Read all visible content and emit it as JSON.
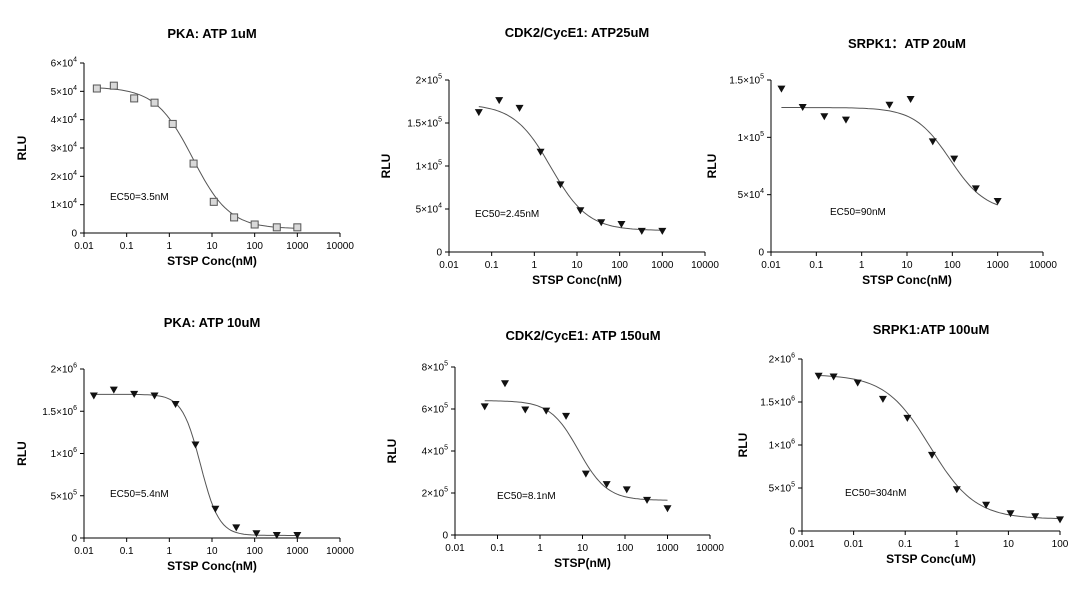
{
  "chart_data": [
    {
      "type": "scatter",
      "title": "PKA: ATP 1uM",
      "xlabel": "STSP Conc(nM)",
      "ylabel": "RLU",
      "xscale": "log",
      "xlim": [
        0.01,
        10000
      ],
      "ylim": [
        0,
        60000
      ],
      "x_ticks": [
        "0.01",
        "0.1",
        "1",
        "10",
        "100",
        "1000",
        "10000"
      ],
      "y_ticks": [
        {
          "value": 0,
          "mant": "0",
          "exp": ""
        },
        {
          "value": 10000,
          "mant": "1×10",
          "exp": "4"
        },
        {
          "value": 20000,
          "mant": "2×10",
          "exp": "4"
        },
        {
          "value": 30000,
          "mant": "3×10",
          "exp": "4"
        },
        {
          "value": 40000,
          "mant": "4×10",
          "exp": "4"
        },
        {
          "value": 50000,
          "mant": "5×10",
          "exp": "4"
        },
        {
          "value": 60000,
          "mant": "6×10",
          "exp": "4"
        }
      ],
      "marker": "square",
      "annotation": "EC50=3.5nM",
      "fit": {
        "top": 51500,
        "bottom": 1500,
        "ec50": 3.5,
        "hill": 1.0
      },
      "points": [
        {
          "x": 0.02,
          "y": 51000
        },
        {
          "x": 0.05,
          "y": 52000
        },
        {
          "x": 0.15,
          "y": 47500
        },
        {
          "x": 0.45,
          "y": 46000
        },
        {
          "x": 1.2,
          "y": 38500
        },
        {
          "x": 3.7,
          "y": 24500
        },
        {
          "x": 11,
          "y": 11000
        },
        {
          "x": 33,
          "y": 5500
        },
        {
          "x": 100,
          "y": 3000
        },
        {
          "x": 330,
          "y": 2000
        },
        {
          "x": 1000,
          "y": 2000
        }
      ]
    },
    {
      "type": "scatter",
      "title": "CDK2/CycE1: ATP25uM",
      "xlabel": "STSP Conc(nM)",
      "ylabel": "RLU",
      "xscale": "log",
      "xlim": [
        0.01,
        10000
      ],
      "ylim": [
        0,
        200000
      ],
      "x_ticks": [
        "0.01",
        "0.1",
        "1",
        "10",
        "100",
        "1000",
        "10000"
      ],
      "y_ticks": [
        {
          "value": 0,
          "mant": "0",
          "exp": ""
        },
        {
          "value": 50000,
          "mant": "5×10",
          "exp": "4"
        },
        {
          "value": 100000,
          "mant": "1×10",
          "exp": "5"
        },
        {
          "value": 150000,
          "mant": "1.5×10",
          "exp": "5"
        },
        {
          "value": 200000,
          "mant": "2×10",
          "exp": "5"
        }
      ],
      "marker": "triangle-down",
      "annotation": "EC50=2.45nM",
      "fit": {
        "top": 172000,
        "bottom": 25000,
        "ec50": 2.45,
        "hill": 1.0
      },
      "points": [
        {
          "x": 0.05,
          "y": 162000
        },
        {
          "x": 0.15,
          "y": 176000
        },
        {
          "x": 0.45,
          "y": 167000
        },
        {
          "x": 1.4,
          "y": 116000
        },
        {
          "x": 4.1,
          "y": 78000
        },
        {
          "x": 12,
          "y": 48000
        },
        {
          "x": 37,
          "y": 34000
        },
        {
          "x": 110,
          "y": 32000
        },
        {
          "x": 330,
          "y": 24000
        },
        {
          "x": 1000,
          "y": 24000
        }
      ]
    },
    {
      "type": "scatter",
      "title": "SRPK1：ATP 20uM",
      "xlabel": "STSP Conc(nM)",
      "ylabel": "RLU",
      "xscale": "log",
      "xlim": [
        0.01,
        10000
      ],
      "ylim": [
        0,
        150000
      ],
      "x_ticks": [
        "0.01",
        "0.1",
        "1",
        "10",
        "100",
        "1000",
        "10000"
      ],
      "y_ticks": [
        {
          "value": 0,
          "mant": "0",
          "exp": ""
        },
        {
          "value": 50000,
          "mant": "5×10",
          "exp": "4"
        },
        {
          "value": 100000,
          "mant": "1×10",
          "exp": "5"
        },
        {
          "value": 150000,
          "mant": "1.5×10",
          "exp": "5"
        }
      ],
      "marker": "triangle-down",
      "annotation": "EC50=90nM",
      "fit": {
        "top": 126000,
        "bottom": 35000,
        "ec50": 90,
        "hill": 1.1
      },
      "points": [
        {
          "x": 0.017,
          "y": 142000
        },
        {
          "x": 0.05,
          "y": 126000
        },
        {
          "x": 0.15,
          "y": 118000
        },
        {
          "x": 0.45,
          "y": 115000
        },
        {
          "x": 4.1,
          "y": 128000
        },
        {
          "x": 12,
          "y": 133000
        },
        {
          "x": 37,
          "y": 96000
        },
        {
          "x": 110,
          "y": 81000
        },
        {
          "x": 330,
          "y": 55000
        },
        {
          "x": 1000,
          "y": 44000
        }
      ]
    },
    {
      "type": "scatter",
      "title": "PKA: ATP 10uM",
      "xlabel": "STSP Conc(nM)",
      "ylabel": "RLU",
      "xscale": "log",
      "xlim": [
        0.01,
        10000
      ],
      "ylim": [
        0,
        2000000
      ],
      "x_ticks": [
        "0.01",
        "0.1",
        "1",
        "10",
        "100",
        "1000",
        "10000"
      ],
      "y_ticks": [
        {
          "value": 0,
          "mant": "0",
          "exp": ""
        },
        {
          "value": 500000,
          "mant": "5×10",
          "exp": "5"
        },
        {
          "value": 1000000,
          "mant": "1×10",
          "exp": "6"
        },
        {
          "value": 1500000,
          "mant": "1.5×10",
          "exp": "6"
        },
        {
          "value": 2000000,
          "mant": "2×10",
          "exp": "6"
        }
      ],
      "marker": "triangle-down",
      "annotation": "EC50=5.4nM",
      "fit": {
        "top": 1700000,
        "bottom": 30000,
        "ec50": 5.4,
        "hill": 2.0
      },
      "points": [
        {
          "x": 0.017,
          "y": 1680000
        },
        {
          "x": 0.05,
          "y": 1750000
        },
        {
          "x": 0.15,
          "y": 1700000
        },
        {
          "x": 0.45,
          "y": 1680000
        },
        {
          "x": 1.4,
          "y": 1580000
        },
        {
          "x": 4.1,
          "y": 1100000
        },
        {
          "x": 12,
          "y": 340000
        },
        {
          "x": 37,
          "y": 120000
        },
        {
          "x": 110,
          "y": 50000
        },
        {
          "x": 330,
          "y": 30000
        },
        {
          "x": 1000,
          "y": 30000
        }
      ]
    },
    {
      "type": "scatter",
      "title": "CDK2/CycE1: ATP 150uM",
      "xlabel": "STSP(nM)",
      "ylabel": "RLU",
      "xscale": "log",
      "xlim": [
        0.01,
        10000
      ],
      "ylim": [
        0,
        800000
      ],
      "x_ticks": [
        "0.01",
        "0.1",
        "1",
        "10",
        "100",
        "1000",
        "10000"
      ],
      "y_ticks": [
        {
          "value": 0,
          "mant": "0",
          "exp": ""
        },
        {
          "value": 200000,
          "mant": "2×10",
          "exp": "5"
        },
        {
          "value": 400000,
          "mant": "4×10",
          "exp": "5"
        },
        {
          "value": 600000,
          "mant": "6×10",
          "exp": "5"
        },
        {
          "value": 800000,
          "mant": "8×10",
          "exp": "5"
        }
      ],
      "marker": "triangle-down",
      "annotation": "EC50=8.1nM",
      "fit": {
        "top": 640000,
        "bottom": 165000,
        "ec50": 8.1,
        "hill": 1.3
      },
      "points": [
        {
          "x": 0.05,
          "y": 610000
        },
        {
          "x": 0.15,
          "y": 720000
        },
        {
          "x": 0.45,
          "y": 595000
        },
        {
          "x": 1.4,
          "y": 590000
        },
        {
          "x": 4.1,
          "y": 565000
        },
        {
          "x": 12,
          "y": 290000
        },
        {
          "x": 37,
          "y": 240000
        },
        {
          "x": 110,
          "y": 215000
        },
        {
          "x": 330,
          "y": 165000
        },
        {
          "x": 1000,
          "y": 125000
        }
      ]
    },
    {
      "type": "scatter",
      "title": "SRPK1:ATP 100uM",
      "xlabel": "STSP Conc(uM)",
      "ylabel": "RLU",
      "xscale": "log",
      "xlim": [
        0.001,
        100
      ],
      "ylim": [
        0,
        2000000
      ],
      "x_ticks": [
        "0.001",
        "0.01",
        "0.1",
        "1",
        "10",
        "100"
      ],
      "y_ticks": [
        {
          "value": 0,
          "mant": "0",
          "exp": ""
        },
        {
          "value": 500000,
          "mant": "5×10",
          "exp": "5"
        },
        {
          "value": 1000000,
          "mant": "1×10",
          "exp": "6"
        },
        {
          "value": 1500000,
          "mant": "1.5×10",
          "exp": "6"
        },
        {
          "value": 2000000,
          "mant": "2×10",
          "exp": "6"
        }
      ],
      "marker": "triangle-down",
      "annotation": "EC50=304nM",
      "fit": {
        "top": 1820000,
        "bottom": 140000,
        "ec50": 0.304,
        "hill": 1.0
      },
      "points": [
        {
          "x": 0.0021,
          "y": 1800000
        },
        {
          "x": 0.0041,
          "y": 1790000
        },
        {
          "x": 0.012,
          "y": 1720000
        },
        {
          "x": 0.037,
          "y": 1530000
        },
        {
          "x": 0.11,
          "y": 1310000
        },
        {
          "x": 0.33,
          "y": 880000
        },
        {
          "x": 1.0,
          "y": 480000
        },
        {
          "x": 3.7,
          "y": 300000
        },
        {
          "x": 11,
          "y": 200000
        },
        {
          "x": 33,
          "y": 165000
        },
        {
          "x": 100,
          "y": 130000
        }
      ]
    }
  ]
}
